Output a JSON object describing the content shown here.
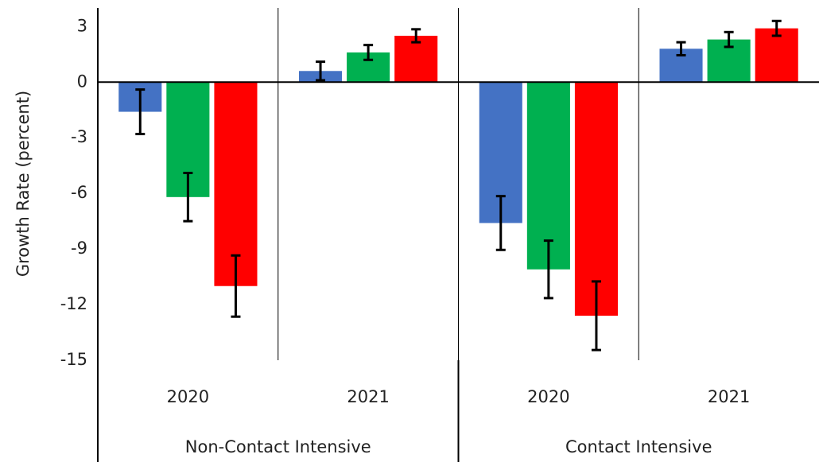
{
  "chart_data": {
    "type": "bar",
    "y_label": "Growth Rate (percent)",
    "categories": [
      "2020",
      "2021",
      "2020",
      "2021"
    ],
    "group_labels": [
      "Non-Contact Intensive",
      "Contact Intensive"
    ],
    "series": [
      {
        "color": "#4472c4",
        "values": [
          -1.6,
          0.6,
          -7.6,
          1.8
        ],
        "errors": [
          1.2,
          0.5,
          1.45,
          0.35
        ]
      },
      {
        "color": "#00b050",
        "values": [
          -6.2,
          1.6,
          -10.1,
          2.3
        ],
        "errors": [
          1.3,
          0.4,
          1.55,
          0.4
        ]
      },
      {
        "color": "#ff0000",
        "values": [
          -11,
          2.5,
          -12.6,
          2.9
        ],
        "errors": [
          1.65,
          0.35,
          1.85,
          0.4
        ]
      }
    ],
    "ylim": [
      -15,
      4
    ],
    "yticks": [
      -15,
      -12,
      -9,
      -6,
      -3,
      0,
      3
    ],
    "grid": false
  }
}
